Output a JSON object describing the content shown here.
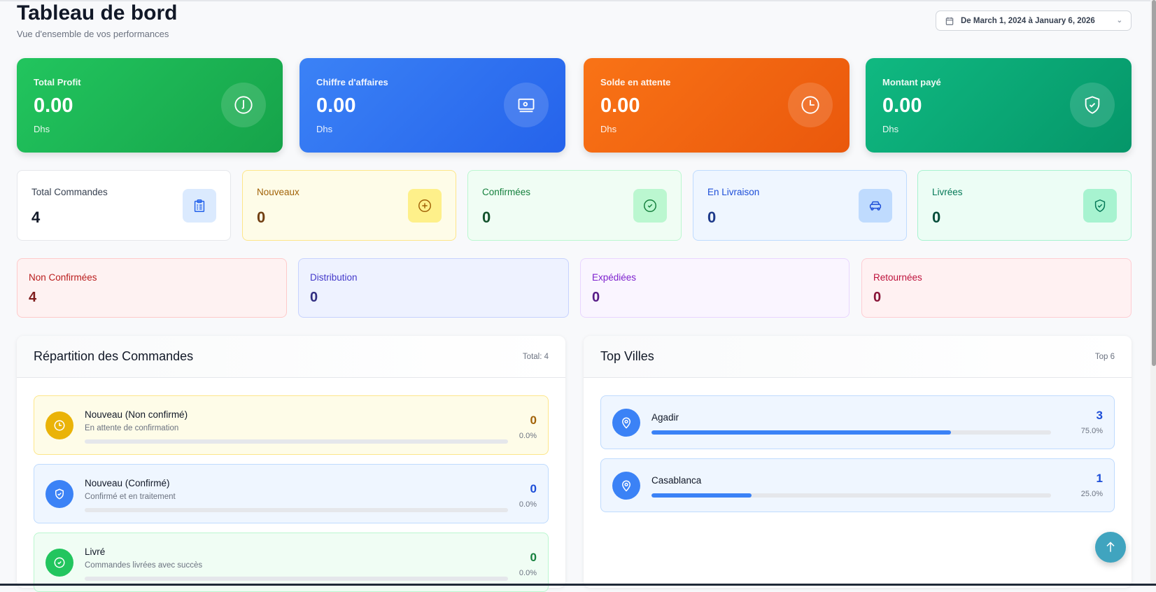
{
  "header": {
    "title": "Tableau de bord",
    "subtitle": "Vue d'ensemble de vos performances",
    "date_range": "De March 1, 2024 à January 6, 2026"
  },
  "kpis": [
    {
      "label": "Total Profit",
      "value": "0.00",
      "unit": "Dhs",
      "icon": "arrow-down-circle-icon",
      "color": "#22c55e"
    },
    {
      "label": "Chiffre d'affaires",
      "value": "0.00",
      "unit": "Dhs",
      "icon": "banknote-icon",
      "color": "#3b82f6"
    },
    {
      "label": "Solde en attente",
      "value": "0.00",
      "unit": "Dhs",
      "icon": "clock-icon",
      "color": "#f97316"
    },
    {
      "label": "Montant payé",
      "value": "0.00",
      "unit": "Dhs",
      "icon": "shield-check-icon",
      "color": "#10b981"
    }
  ],
  "order_stats": [
    {
      "label": "Total Commandes",
      "value": "4",
      "icon": "clipboard-icon"
    },
    {
      "label": "Nouveaux",
      "value": "0",
      "icon": "plus-circle-icon"
    },
    {
      "label": "Confirmées",
      "value": "0",
      "icon": "check-circle-icon"
    },
    {
      "label": "En Livraison",
      "value": "0",
      "icon": "car-icon"
    },
    {
      "label": "Livrées",
      "value": "0",
      "icon": "shield-check-icon"
    }
  ],
  "status_stats": [
    {
      "label": "Non Confirmées",
      "value": "4"
    },
    {
      "label": "Distribution",
      "value": "0"
    },
    {
      "label": "Expédiées",
      "value": "0"
    },
    {
      "label": "Retournées",
      "value": "0"
    }
  ],
  "repartition": {
    "title": "Répartition des Commandes",
    "total": "Total: 4",
    "items": [
      {
        "name": "Nouveau (Non confirmé)",
        "desc": "En attente de confirmation",
        "count": "0",
        "pct": "0.0%",
        "progress": 0,
        "icon": "clock-icon"
      },
      {
        "name": "Nouveau (Confirmé)",
        "desc": "Confirmé et en traitement",
        "count": "0",
        "pct": "0.0%",
        "progress": 0,
        "icon": "shield-check-icon"
      },
      {
        "name": "Livré",
        "desc": "Commandes livrées avec succès",
        "count": "0",
        "pct": "0.0%",
        "progress": 0,
        "icon": "check-circle-icon"
      }
    ]
  },
  "top_villes": {
    "title": "Top Villes",
    "subtitle": "Top 6",
    "items": [
      {
        "name": "Agadir",
        "count": "3",
        "pct": "75.0%",
        "progress": 75,
        "icon": "map-pin-icon"
      },
      {
        "name": "Casablanca",
        "count": "1",
        "pct": "25.0%",
        "progress": 25,
        "icon": "map-pin-icon"
      }
    ]
  }
}
